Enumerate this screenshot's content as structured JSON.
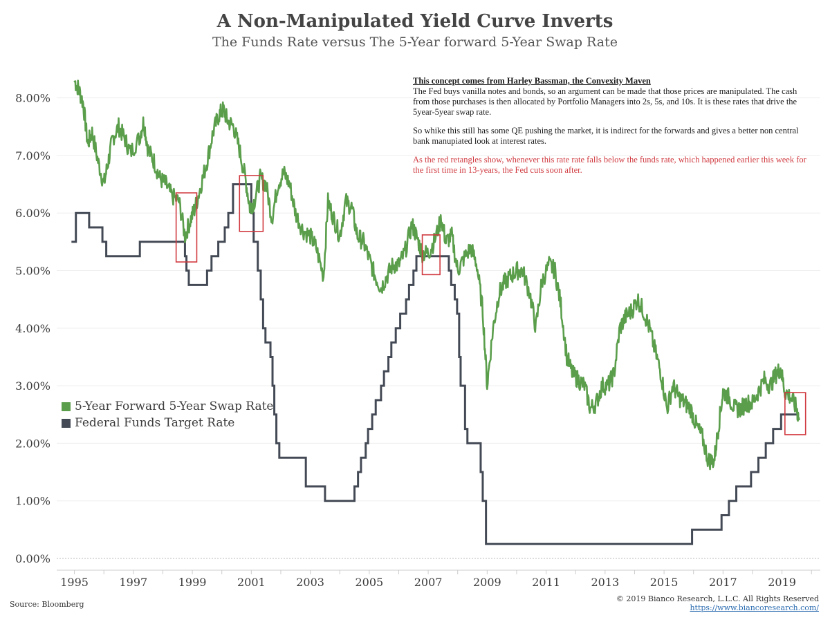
{
  "title": "A Non-Manipulated Yield Curve Inverts",
  "subtitle": "The Funds Rate versus The 5-Year forward 5-Year Swap Rate",
  "notes": {
    "heading": "This concept comes from Harley Bassman, the Convexity Maven",
    "para1": "The Fed buys vanilla notes and bonds, so an argument can be made that those prices are manipulated. The cash from those purchases is then allocated by Portfolio Managers into 2s, 5s, and 10s. It is these rates that drive the 5year-5year swap rate.",
    "para2": "So whike this still has some QE pushing the market, it is indirect for the forwards and gives a better non central bank manupiated look at interest rates.",
    "para3": "As the red retangles show, whenever this rate rate falls below the funds rate, which happened earlier this week for the first time in 13-years, the Fed cuts soon after."
  },
  "footer": {
    "source": "Source: Bloomberg",
    "copyright": "© 2019 Bianco Research, L.L.C. All Rights Reserved",
    "url": "https://www.biancoresearch.com/"
  },
  "chart_data": {
    "type": "line",
    "xlim": [
      1994.4,
      2020.3
    ],
    "ylim": [
      0,
      8.5
    ],
    "x_ticks": [
      "1995",
      "1997",
      "1999",
      "2001",
      "2003",
      "2005",
      "2007",
      "2009",
      "2011",
      "2013",
      "2015",
      "2017",
      "2019"
    ],
    "y_ticks": [
      "0.00%",
      "1.00%",
      "2.00%",
      "3.00%",
      "4.00%",
      "5.00%",
      "6.00%",
      "7.00%",
      "8.00%"
    ],
    "grid": "horizontal",
    "legend_position": "middle-left",
    "series": [
      {
        "name": "5-Year Forward 5-Year Swap Rate",
        "color": "#5a9e4b",
        "points": [
          [
            1995.0,
            8.3
          ],
          [
            1995.15,
            8.15
          ],
          [
            1995.3,
            7.9
          ],
          [
            1995.45,
            7.2
          ],
          [
            1995.6,
            7.4
          ],
          [
            1995.8,
            6.9
          ],
          [
            1996.0,
            6.5
          ],
          [
            1996.15,
            6.9
          ],
          [
            1996.3,
            7.3
          ],
          [
            1996.5,
            7.5
          ],
          [
            1996.7,
            7.3
          ],
          [
            1996.9,
            7.05
          ],
          [
            1997.2,
            7.3
          ],
          [
            1997.35,
            7.6
          ],
          [
            1997.5,
            7.1
          ],
          [
            1997.7,
            6.9
          ],
          [
            1997.9,
            6.6
          ],
          [
            1998.1,
            6.5
          ],
          [
            1998.3,
            6.3
          ],
          [
            1998.55,
            6.2
          ],
          [
            1998.75,
            5.6
          ],
          [
            1998.95,
            5.9
          ],
          [
            1999.1,
            6.1
          ],
          [
            1999.3,
            6.5
          ],
          [
            1999.5,
            6.9
          ],
          [
            1999.7,
            7.4
          ],
          [
            1999.9,
            7.7
          ],
          [
            2000.05,
            7.8
          ],
          [
            2000.2,
            7.6
          ],
          [
            2000.4,
            7.5
          ],
          [
            2000.6,
            7.1
          ],
          [
            2000.8,
            6.6
          ],
          [
            2000.95,
            6.1
          ],
          [
            2001.1,
            6.2
          ],
          [
            2001.3,
            6.6
          ],
          [
            2001.5,
            6.5
          ],
          [
            2001.7,
            5.9
          ],
          [
            2001.9,
            6.5
          ],
          [
            2002.1,
            6.7
          ],
          [
            2002.3,
            6.5
          ],
          [
            2002.5,
            6.0
          ],
          [
            2002.75,
            5.7
          ],
          [
            2003.0,
            5.6
          ],
          [
            2003.2,
            5.4
          ],
          [
            2003.45,
            4.9
          ],
          [
            2003.6,
            6.2
          ],
          [
            2003.8,
            5.9
          ],
          [
            2004.0,
            5.6
          ],
          [
            2004.2,
            6.2
          ],
          [
            2004.4,
            6.1
          ],
          [
            2004.6,
            5.6
          ],
          [
            2004.8,
            5.5
          ],
          [
            2005.0,
            5.2
          ],
          [
            2005.2,
            4.9
          ],
          [
            2005.4,
            4.7
          ],
          [
            2005.6,
            4.9
          ],
          [
            2005.8,
            5.1
          ],
          [
            2006.0,
            5.1
          ],
          [
            2006.2,
            5.3
          ],
          [
            2006.45,
            5.8
          ],
          [
            2006.6,
            5.6
          ],
          [
            2006.8,
            5.3
          ],
          [
            2007.0,
            5.3
          ],
          [
            2007.2,
            5.5
          ],
          [
            2007.45,
            5.9
          ],
          [
            2007.6,
            5.5
          ],
          [
            2007.8,
            5.6
          ],
          [
            2008.0,
            5.0
          ],
          [
            2008.2,
            5.2
          ],
          [
            2008.45,
            5.4
          ],
          [
            2008.65,
            5.1
          ],
          [
            2008.85,
            4.3
          ],
          [
            2009.0,
            3.0
          ],
          [
            2009.2,
            4.0
          ],
          [
            2009.4,
            4.6
          ],
          [
            2009.6,
            4.8
          ],
          [
            2009.8,
            4.9
          ],
          [
            2010.0,
            5.0
          ],
          [
            2010.2,
            5.0
          ],
          [
            2010.45,
            4.6
          ],
          [
            2010.65,
            4.0
          ],
          [
            2010.85,
            4.8
          ],
          [
            2011.1,
            5.1
          ],
          [
            2011.3,
            5.0
          ],
          [
            2011.5,
            4.4
          ],
          [
            2011.7,
            3.5
          ],
          [
            2011.9,
            3.2
          ],
          [
            2012.1,
            3.1
          ],
          [
            2012.3,
            3.0
          ],
          [
            2012.5,
            2.6
          ],
          [
            2012.7,
            2.7
          ],
          [
            2012.9,
            3.0
          ],
          [
            2013.1,
            3.0
          ],
          [
            2013.3,
            3.2
          ],
          [
            2013.5,
            4.0
          ],
          [
            2013.7,
            4.2
          ],
          [
            2013.9,
            4.3
          ],
          [
            2014.1,
            4.5
          ],
          [
            2014.3,
            4.3
          ],
          [
            2014.5,
            4.0
          ],
          [
            2014.7,
            3.6
          ],
          [
            2014.9,
            3.2
          ],
          [
            2015.1,
            2.6
          ],
          [
            2015.3,
            3.0
          ],
          [
            2015.5,
            2.8
          ],
          [
            2015.7,
            2.7
          ],
          [
            2015.9,
            2.6
          ],
          [
            2016.1,
            2.3
          ],
          [
            2016.3,
            2.1
          ],
          [
            2016.5,
            1.7
          ],
          [
            2016.7,
            1.7
          ],
          [
            2016.85,
            2.3
          ],
          [
            2017.0,
            2.9
          ],
          [
            2017.2,
            2.8
          ],
          [
            2017.4,
            2.6
          ],
          [
            2017.6,
            2.6
          ],
          [
            2017.8,
            2.7
          ],
          [
            2018.0,
            2.7
          ],
          [
            2018.2,
            2.9
          ],
          [
            2018.4,
            3.1
          ],
          [
            2018.6,
            3.0
          ],
          [
            2018.8,
            3.2
          ],
          [
            2018.95,
            3.3
          ],
          [
            2019.1,
            2.9
          ],
          [
            2019.3,
            2.8
          ],
          [
            2019.5,
            2.6
          ],
          [
            2019.58,
            2.4
          ]
        ]
      },
      {
        "name": "Federal Funds Target Rate",
        "color": "#444a55",
        "points": [
          [
            1994.9,
            5.5
          ],
          [
            1995.05,
            6.0
          ],
          [
            1995.5,
            5.75
          ],
          [
            1995.95,
            5.5
          ],
          [
            1996.08,
            5.25
          ],
          [
            1997.22,
            5.5
          ],
          [
            1998.75,
            5.25
          ],
          [
            1998.8,
            5.0
          ],
          [
            1998.88,
            4.75
          ],
          [
            1999.5,
            5.0
          ],
          [
            1999.65,
            5.25
          ],
          [
            1999.88,
            5.5
          ],
          [
            2000.1,
            5.75
          ],
          [
            2000.22,
            6.0
          ],
          [
            2000.38,
            6.5
          ],
          [
            2001.0,
            6.0
          ],
          [
            2001.08,
            5.5
          ],
          [
            2001.22,
            5.0
          ],
          [
            2001.32,
            4.5
          ],
          [
            2001.4,
            4.0
          ],
          [
            2001.48,
            3.75
          ],
          [
            2001.65,
            3.5
          ],
          [
            2001.72,
            3.0
          ],
          [
            2001.78,
            2.5
          ],
          [
            2001.85,
            2.0
          ],
          [
            2001.95,
            1.75
          ],
          [
            2002.85,
            1.25
          ],
          [
            2003.5,
            1.0
          ],
          [
            2004.5,
            1.25
          ],
          [
            2004.62,
            1.5
          ],
          [
            2004.72,
            1.75
          ],
          [
            2004.88,
            2.0
          ],
          [
            2004.96,
            2.25
          ],
          [
            2005.1,
            2.5
          ],
          [
            2005.22,
            2.75
          ],
          [
            2005.4,
            3.0
          ],
          [
            2005.5,
            3.25
          ],
          [
            2005.65,
            3.5
          ],
          [
            2005.75,
            3.75
          ],
          [
            2005.9,
            4.0
          ],
          [
            2006.05,
            4.25
          ],
          [
            2006.25,
            4.5
          ],
          [
            2006.35,
            4.75
          ],
          [
            2006.5,
            5.0
          ],
          [
            2006.6,
            5.25
          ],
          [
            2007.7,
            5.0
          ],
          [
            2007.78,
            4.75
          ],
          [
            2007.9,
            4.5
          ],
          [
            2007.98,
            4.25
          ],
          [
            2008.05,
            3.5
          ],
          [
            2008.1,
            3.0
          ],
          [
            2008.25,
            2.25
          ],
          [
            2008.33,
            2.0
          ],
          [
            2008.78,
            1.5
          ],
          [
            2008.85,
            1.0
          ],
          [
            2008.96,
            0.25
          ],
          [
            2015.95,
            0.5
          ],
          [
            2016.95,
            0.75
          ],
          [
            2017.2,
            1.0
          ],
          [
            2017.45,
            1.25
          ],
          [
            2017.95,
            1.5
          ],
          [
            2018.2,
            1.75
          ],
          [
            2018.45,
            2.0
          ],
          [
            2018.7,
            2.25
          ],
          [
            2018.97,
            2.5
          ],
          [
            2019.58,
            2.5
          ]
        ]
      }
    ],
    "highlight_boxes": [
      {
        "x0": 1998.45,
        "x1": 1999.15,
        "y0": 5.15,
        "y1": 6.35
      },
      {
        "x0": 2000.6,
        "x1": 2001.4,
        "y0": 5.68,
        "y1": 6.65
      },
      {
        "x0": 2006.8,
        "x1": 2007.4,
        "y0": 4.93,
        "y1": 5.62
      },
      {
        "x0": 2019.1,
        "x1": 2019.8,
        "y0": 2.15,
        "y1": 2.88
      }
    ],
    "highlight_color": "#d0393f"
  }
}
